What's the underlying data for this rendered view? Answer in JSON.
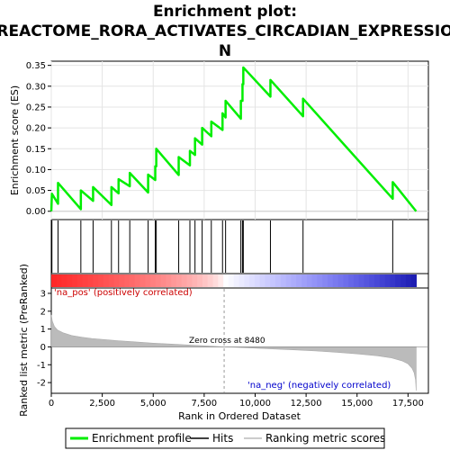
{
  "title_lines": [
    "Enrichment plot:",
    "REACTOME_RORA_ACTIVATES_CIRCADIAN_EXPRESSIO",
    "N"
  ],
  "chart_data": {
    "type": "line",
    "xlabel": "Rank in Ordered Dataset",
    "ylabel_top": "Enrichment score (ES)",
    "ylabel_bottom": "Ranked list metric (PreRanked)",
    "x_range": [
      0,
      18500
    ],
    "x_ticks": [
      0,
      2500,
      5000,
      7500,
      10000,
      12500,
      15000,
      17500
    ],
    "x_tick_labels": [
      "0",
      "2,500",
      "5,000",
      "7,500",
      "10,000",
      "12,500",
      "15,000",
      "17,500"
    ],
    "es_range": [
      -0.02,
      0.36
    ],
    "es_ticks": [
      0.0,
      0.05,
      0.1,
      0.15,
      0.2,
      0.25,
      0.3,
      0.35
    ],
    "es_tick_labels": [
      "0.00",
      "0.05",
      "0.10",
      "0.15",
      "0.20",
      "0.25",
      "0.30",
      "0.35"
    ],
    "metric_range": [
      -2.6,
      3.3
    ],
    "metric_ticks": [
      -2,
      -1,
      0,
      1,
      2,
      3
    ],
    "metric_tick_labels": [
      "-2",
      "-1",
      "0",
      "1",
      "2",
      "3"
    ],
    "hits": [
      30,
      330,
      1450,
      2050,
      2950,
      3300,
      3850,
      4750,
      5100,
      5150,
      6250,
      6800,
      7050,
      7400,
      7850,
      8400,
      8550,
      9300,
      9380,
      9420,
      10750,
      12350,
      16750
    ],
    "es_curve": [
      [
        0,
        0.0
      ],
      [
        30,
        0.042
      ],
      [
        330,
        0.018
      ],
      [
        330,
        0.068
      ],
      [
        1450,
        0.005
      ],
      [
        1450,
        0.05
      ],
      [
        2050,
        0.025
      ],
      [
        2050,
        0.058
      ],
      [
        2950,
        0.015
      ],
      [
        2950,
        0.058
      ],
      [
        3300,
        0.043
      ],
      [
        3300,
        0.077
      ],
      [
        3850,
        0.06
      ],
      [
        3850,
        0.092
      ],
      [
        4750,
        0.045
      ],
      [
        4750,
        0.088
      ],
      [
        5100,
        0.075
      ],
      [
        5100,
        0.108
      ],
      [
        5150,
        0.108
      ],
      [
        5150,
        0.15
      ],
      [
        6250,
        0.087
      ],
      [
        6250,
        0.13
      ],
      [
        6800,
        0.11
      ],
      [
        6800,
        0.145
      ],
      [
        7050,
        0.135
      ],
      [
        7050,
        0.175
      ],
      [
        7400,
        0.16
      ],
      [
        7400,
        0.2
      ],
      [
        7850,
        0.18
      ],
      [
        7850,
        0.215
      ],
      [
        8400,
        0.195
      ],
      [
        8400,
        0.235
      ],
      [
        8550,
        0.225
      ],
      [
        8550,
        0.265
      ],
      [
        9300,
        0.222
      ],
      [
        9300,
        0.265
      ],
      [
        9380,
        0.265
      ],
      [
        9380,
        0.305
      ],
      [
        9420,
        0.305
      ],
      [
        9420,
        0.345
      ],
      [
        10750,
        0.275
      ],
      [
        10750,
        0.315
      ],
      [
        12350,
        0.228
      ],
      [
        12350,
        0.27
      ],
      [
        16750,
        0.03
      ],
      [
        16750,
        0.07
      ],
      [
        17900,
        0.0
      ]
    ],
    "zero_cross_rank": 8480,
    "zero_cross_label": "Zero cross at 8480",
    "pos_label": "'na_pos' (positively correlated)",
    "neg_label": "'na_neg' (negatively correlated)",
    "n_genes": 17900,
    "metric_profile": [
      [
        0,
        1.8
      ],
      [
        50,
        1.45
      ],
      [
        150,
        1.15
      ],
      [
        300,
        0.95
      ],
      [
        600,
        0.78
      ],
      [
        1000,
        0.64
      ],
      [
        1500,
        0.54
      ],
      [
        2000,
        0.47
      ],
      [
        3000,
        0.37
      ],
      [
        4000,
        0.29
      ],
      [
        5000,
        0.21
      ],
      [
        6000,
        0.15
      ],
      [
        7000,
        0.09
      ],
      [
        8000,
        0.03
      ],
      [
        8480,
        0.0
      ],
      [
        9000,
        -0.02
      ],
      [
        10000,
        -0.07
      ],
      [
        11000,
        -0.12
      ],
      [
        12000,
        -0.17
      ],
      [
        13000,
        -0.23
      ],
      [
        14000,
        -0.3
      ],
      [
        15000,
        -0.39
      ],
      [
        16000,
        -0.5
      ],
      [
        16700,
        -0.62
      ],
      [
        17200,
        -0.78
      ],
      [
        17500,
        -0.95
      ],
      [
        17700,
        -1.2
      ],
      [
        17800,
        -1.45
      ],
      [
        17870,
        -1.85
      ],
      [
        17900,
        -2.45
      ]
    ],
    "legend": [
      "Enrichment profile",
      "Hits",
      "Ranking metric scores"
    ],
    "colors": {
      "es_line": "#00ee00",
      "hit": "#000000",
      "metric_fill": "#bbbbbb",
      "zero_line": "#999999",
      "pos_color": "#ff0000",
      "neg_color": "#0000ff"
    }
  }
}
